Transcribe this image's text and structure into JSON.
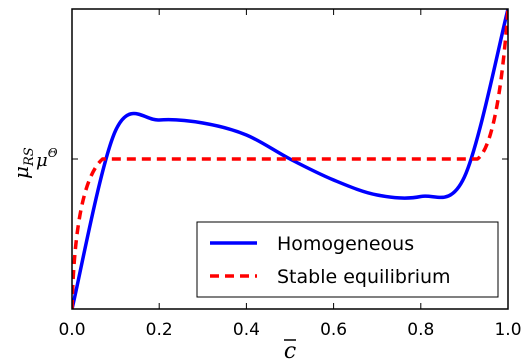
{
  "chart_data": {
    "type": "line",
    "xlabel": "c",
    "ylabel": {
      "main": "μ",
      "sub": "RS"
    },
    "xlim": [
      0.0,
      1.0
    ],
    "ylim": [
      -1.0,
      1.0
    ],
    "xticks": [
      {
        "value": 0.0,
        "label": "0.0"
      },
      {
        "value": 0.2,
        "label": "0.2"
      },
      {
        "value": 0.4,
        "label": "0.4"
      },
      {
        "value": 0.6,
        "label": "0.6"
      },
      {
        "value": 0.8,
        "label": "0.8"
      },
      {
        "value": 1.0,
        "label": "1.0"
      }
    ],
    "yticks": [
      {
        "value": 0.0,
        "label": "μ",
        "sup": "Θ"
      }
    ],
    "legend": {
      "placement": "lower-right",
      "entries": [
        {
          "label": "Homogeneous",
          "color": "#0000ff",
          "style": "solid"
        },
        {
          "label": "Stable equilibrium",
          "color": "#ff0000",
          "style": "dashed"
        }
      ]
    },
    "series": [
      {
        "name": "Homogeneous",
        "color": "#0000ff",
        "style": "solid",
        "x": [
          0.0,
          0.1,
          0.2,
          0.3,
          0.4,
          0.5,
          0.6,
          0.7,
          0.8,
          0.9,
          1.0
        ],
        "y": [
          -1.0,
          0.19,
          0.26,
          0.24,
          0.16,
          0.0,
          -0.14,
          -0.24,
          -0.25,
          -0.12,
          1.0
        ]
      },
      {
        "name": "Stable equilibrium",
        "color": "#ff0000",
        "style": "dashed",
        "x": [
          0.0,
          0.07,
          0.93,
          1.0
        ],
        "y": [
          -1.0,
          0.0,
          0.0,
          1.0
        ]
      }
    ]
  }
}
